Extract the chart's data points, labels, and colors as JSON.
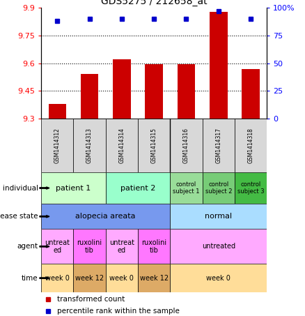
{
  "title": "GDS5275 / 212658_at",
  "samples": [
    "GSM1414312",
    "GSM1414313",
    "GSM1414314",
    "GSM1414315",
    "GSM1414316",
    "GSM1414317",
    "GSM1414318"
  ],
  "bar_values": [
    9.38,
    9.54,
    9.62,
    9.595,
    9.595,
    9.88,
    9.57
  ],
  "dot_values": [
    88,
    90,
    90,
    90,
    90,
    97,
    90
  ],
  "ylim_left": [
    9.3,
    9.9
  ],
  "ylim_right": [
    0,
    100
  ],
  "left_ticks": [
    9.3,
    9.45,
    9.6,
    9.75,
    9.9
  ],
  "right_ticks": [
    0,
    25,
    50,
    75,
    100
  ],
  "right_tick_labels": [
    "0",
    "25",
    "50",
    "75",
    "100%"
  ],
  "bar_color": "#cc0000",
  "dot_color": "#0000cc",
  "bar_baseline": 9.3,
  "rows": [
    {
      "label": "individual",
      "cells": [
        {
          "text": "patient 1",
          "span": 2,
          "color": "#ccffcc",
          "fontsize": 8
        },
        {
          "text": "patient 2",
          "span": 2,
          "color": "#99ffcc",
          "fontsize": 8
        },
        {
          "text": "control\nsubject 1",
          "span": 1,
          "color": "#99dd99",
          "fontsize": 6
        },
        {
          "text": "control\nsubject 2",
          "span": 1,
          "color": "#77cc77",
          "fontsize": 6
        },
        {
          "text": "control\nsubject 3",
          "span": 1,
          "color": "#44bb44",
          "fontsize": 6
        }
      ]
    },
    {
      "label": "disease state",
      "cells": [
        {
          "text": "alopecia areata",
          "span": 4,
          "color": "#7799ee",
          "fontsize": 8
        },
        {
          "text": "normal",
          "span": 3,
          "color": "#aaddff",
          "fontsize": 8
        }
      ]
    },
    {
      "label": "agent",
      "cells": [
        {
          "text": "untreat\ned",
          "span": 1,
          "color": "#ffaaff",
          "fontsize": 7
        },
        {
          "text": "ruxolini\ntib",
          "span": 1,
          "color": "#ff77ff",
          "fontsize": 7
        },
        {
          "text": "untreat\ned",
          "span": 1,
          "color": "#ffaaff",
          "fontsize": 7
        },
        {
          "text": "ruxolini\ntib",
          "span": 1,
          "color": "#ff77ff",
          "fontsize": 7
        },
        {
          "text": "untreated",
          "span": 3,
          "color": "#ffaaff",
          "fontsize": 7
        }
      ]
    },
    {
      "label": "time",
      "cells": [
        {
          "text": "week 0",
          "span": 1,
          "color": "#ffdd99",
          "fontsize": 7
        },
        {
          "text": "week 12",
          "span": 1,
          "color": "#ddaa66",
          "fontsize": 7
        },
        {
          "text": "week 0",
          "span": 1,
          "color": "#ffdd99",
          "fontsize": 7
        },
        {
          "text": "week 12",
          "span": 1,
          "color": "#ddaa66",
          "fontsize": 7
        },
        {
          "text": "week 0",
          "span": 3,
          "color": "#ffdd99",
          "fontsize": 7
        }
      ]
    }
  ]
}
